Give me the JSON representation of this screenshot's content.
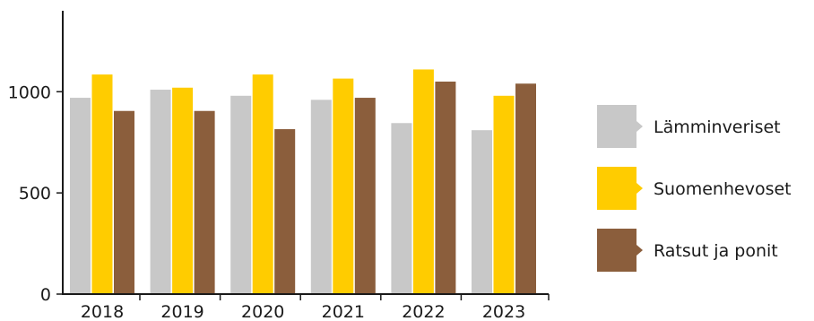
{
  "chart_data": {
    "type": "bar",
    "categories": [
      "2018",
      "2019",
      "2020",
      "2021",
      "2022",
      "2023"
    ],
    "series": [
      {
        "name": "Lämminveriset",
        "color": "#c8c8c8",
        "values": [
          970,
          1010,
          980,
          960,
          845,
          810
        ]
      },
      {
        "name": "Suomenhevoset",
        "color": "#ffcc00",
        "values": [
          1085,
          1020,
          1085,
          1065,
          1110,
          980
        ]
      },
      {
        "name": "Ratsut ja ponit",
        "color": "#8b5e3c",
        "values": [
          905,
          905,
          815,
          970,
          1050,
          1040
        ]
      }
    ],
    "y_ticks": [
      "0",
      "500",
      "1000"
    ],
    "ylim": [
      0,
      1400
    ],
    "grid": false,
    "legend_position": "right",
    "title": "",
    "xlabel": "",
    "ylabel": ""
  }
}
